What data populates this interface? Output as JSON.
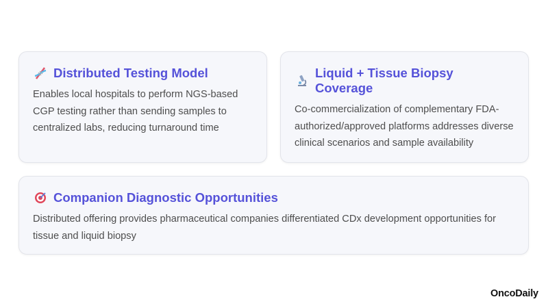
{
  "cards": [
    {
      "icon": "dna-icon",
      "title": "Distributed Testing Model",
      "body": "Enables local hospitals to perform NGS-based CGP testing rather than sending samples to centralized labs, reducing turnaround time"
    },
    {
      "icon": "microscope-icon",
      "title": "Liquid + Tissue Biopsy Coverage",
      "body": "Co-commercialization of complementary FDA-authorized/approved platforms addresses diverse clinical scenarios and sample availability"
    },
    {
      "icon": "target-icon",
      "title": "Companion Diagnostic Opportunities",
      "body": "Distributed offering provides pharmaceutical companies differentiated CDx development opportunities for tissue and liquid biopsy"
    }
  ],
  "logo": "OncoDaily",
  "colors": {
    "title": "#5552d9",
    "body": "#4d4d4d",
    "card_bg": "#f6f7fb"
  }
}
